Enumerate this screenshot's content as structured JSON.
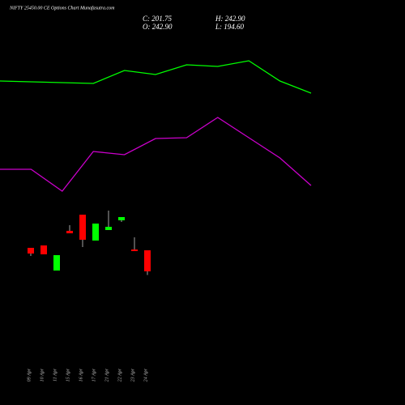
{
  "header": {
    "title": "NIFTY 25450.00 CE Options Chart Munafasutra.com",
    "close": "C: 201.75",
    "high": "H: 242.90",
    "open": "O: 242.90",
    "low": "L: 194.60"
  },
  "chart_data": [
    {
      "type": "line",
      "categories": [
        null,
        null,
        null,
        null,
        null,
        null,
        null,
        null,
        null,
        null,
        null
      ],
      "series": [
        {
          "color": "#00ff00",
          "values": [
            75,
            74.5,
            74,
            73.5,
            81.5,
            79,
            85,
            84,
            87.5,
            75,
            67.5
          ]
        },
        {
          "color": "#cc00cc",
          "values": [
            20.5,
            20.5,
            7,
            31.5,
            29.5,
            39.5,
            40,
            52.5,
            40,
            27.5,
            10.5
          ]
        }
      ],
      "ylim": [
        0,
        100
      ]
    },
    {
      "type": "candlestick",
      "categories": [
        "09 Apr",
        "10 Apr",
        "11 Apr",
        "15 Apr",
        "16 Apr",
        "17 Apr",
        "21 Apr",
        "22 Apr",
        "23 Apr",
        "24 Apr"
      ],
      "open": [
        247.7,
        252.4,
        203.3,
        280.9,
        312.5,
        261.9,
        282.5,
        301.5,
        244.5,
        242.9
      ],
      "high": [
        247.7,
        252.4,
        233.4,
        292.0,
        312.5,
        295.1,
        320.5,
        307.8,
        268.2,
        242.9
      ],
      "low": [
        231.8,
        235.0,
        203.3,
        276.1,
        249.2,
        261.9,
        282.5,
        298.3,
        241.3,
        194.6
      ],
      "close": [
        236.6,
        235.0,
        233.4,
        276.1,
        263.5,
        295.1,
        288.8,
        307.8,
        241.3,
        201.75
      ],
      "up_color": "#00ff00",
      "down_color": "#ff0000",
      "ylim": [
        178,
        336.3
      ]
    }
  ]
}
